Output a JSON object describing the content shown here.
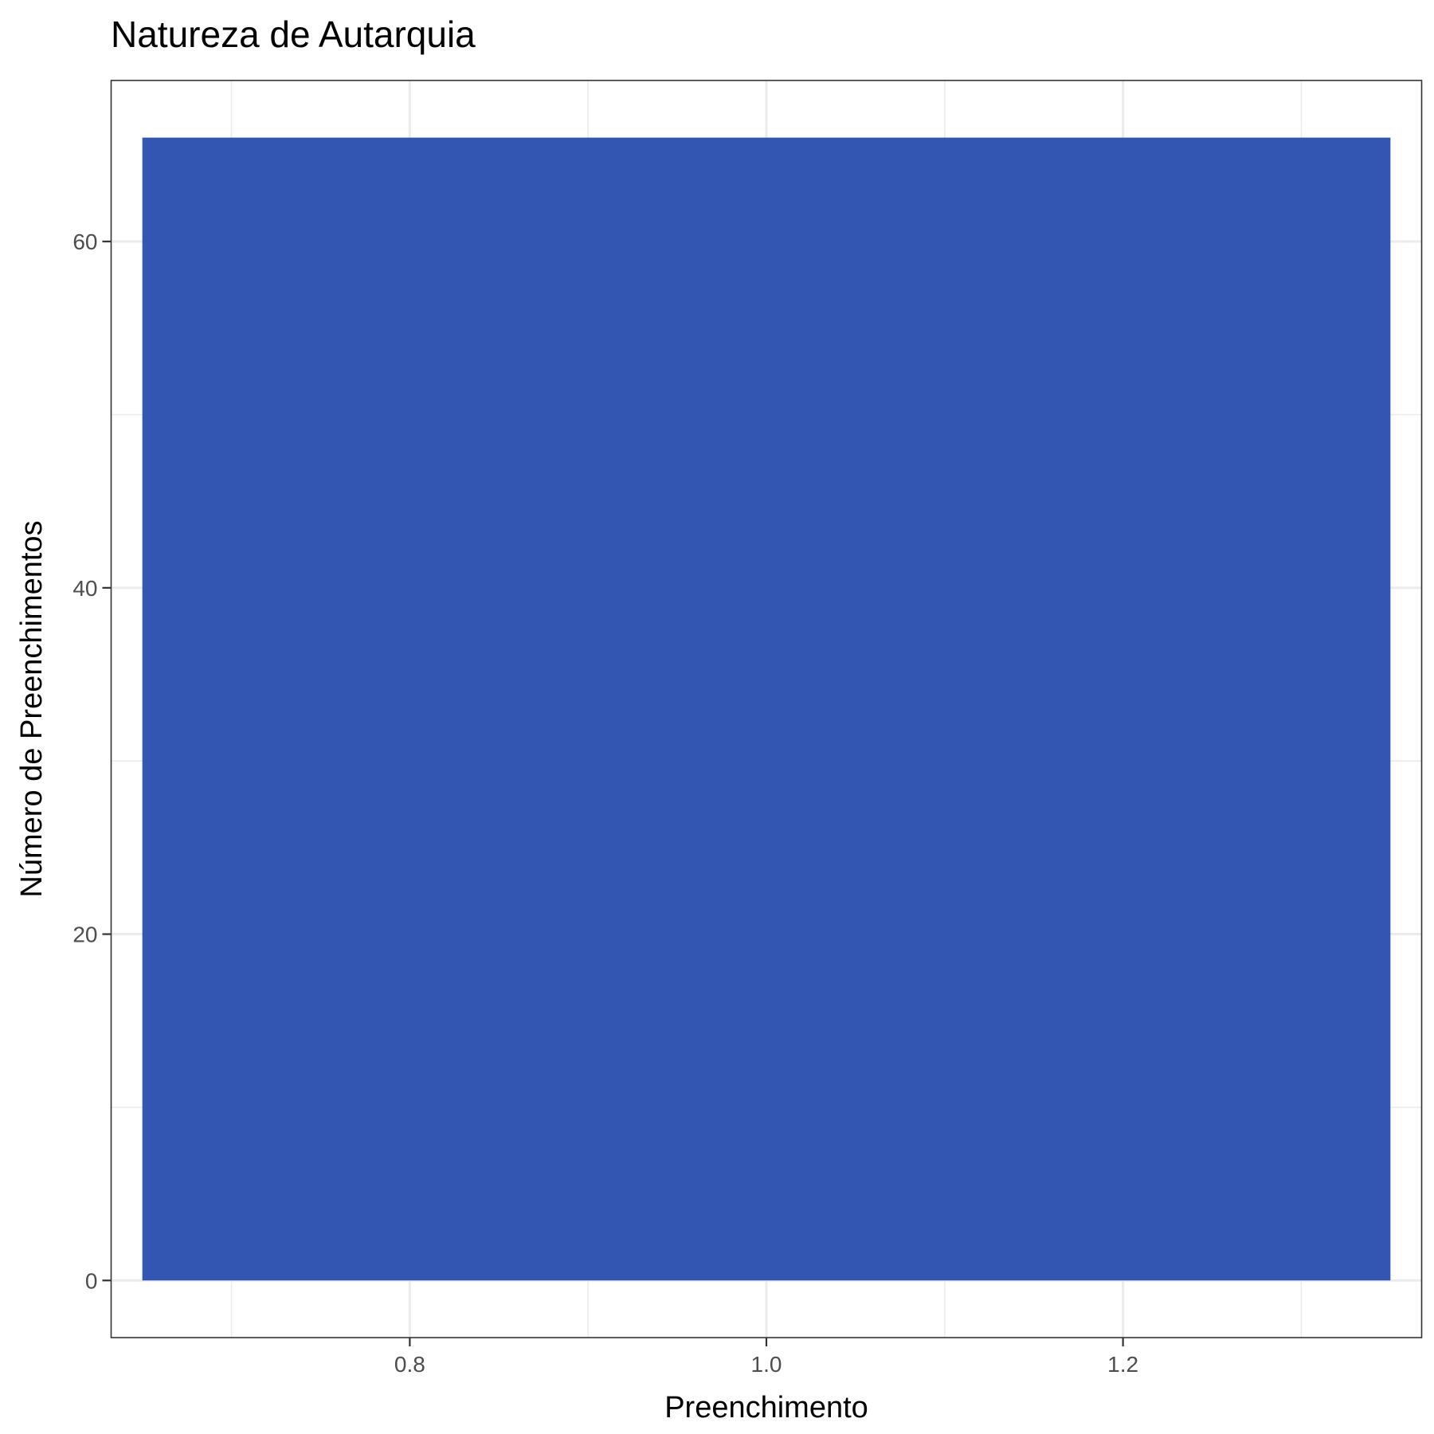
{
  "chart_data": {
    "type": "bar",
    "title": "Natureza de Autarquia",
    "xlabel": "Preenchimento",
    "ylabel": "Número de Preenchimentos",
    "x": [
      1.0
    ],
    "values": [
      66
    ],
    "bar_width": 0.7,
    "xlim": [
      0.6325,
      1.3675
    ],
    "ylim": [
      -3.3,
      69.3
    ],
    "x_ticks": [
      0.8,
      1.0,
      1.2
    ],
    "x_tick_labels": [
      "0.8",
      "1.0",
      "1.2"
    ],
    "x_minor_ticks": [
      0.7,
      0.9,
      1.1,
      1.3
    ],
    "y_ticks": [
      0,
      20,
      40,
      60
    ],
    "y_tick_labels": [
      "0",
      "20",
      "40",
      "60"
    ],
    "y_minor_ticks": [
      10,
      30,
      50
    ],
    "grid": true,
    "legend": "none",
    "bar_color": "#3456b3"
  }
}
